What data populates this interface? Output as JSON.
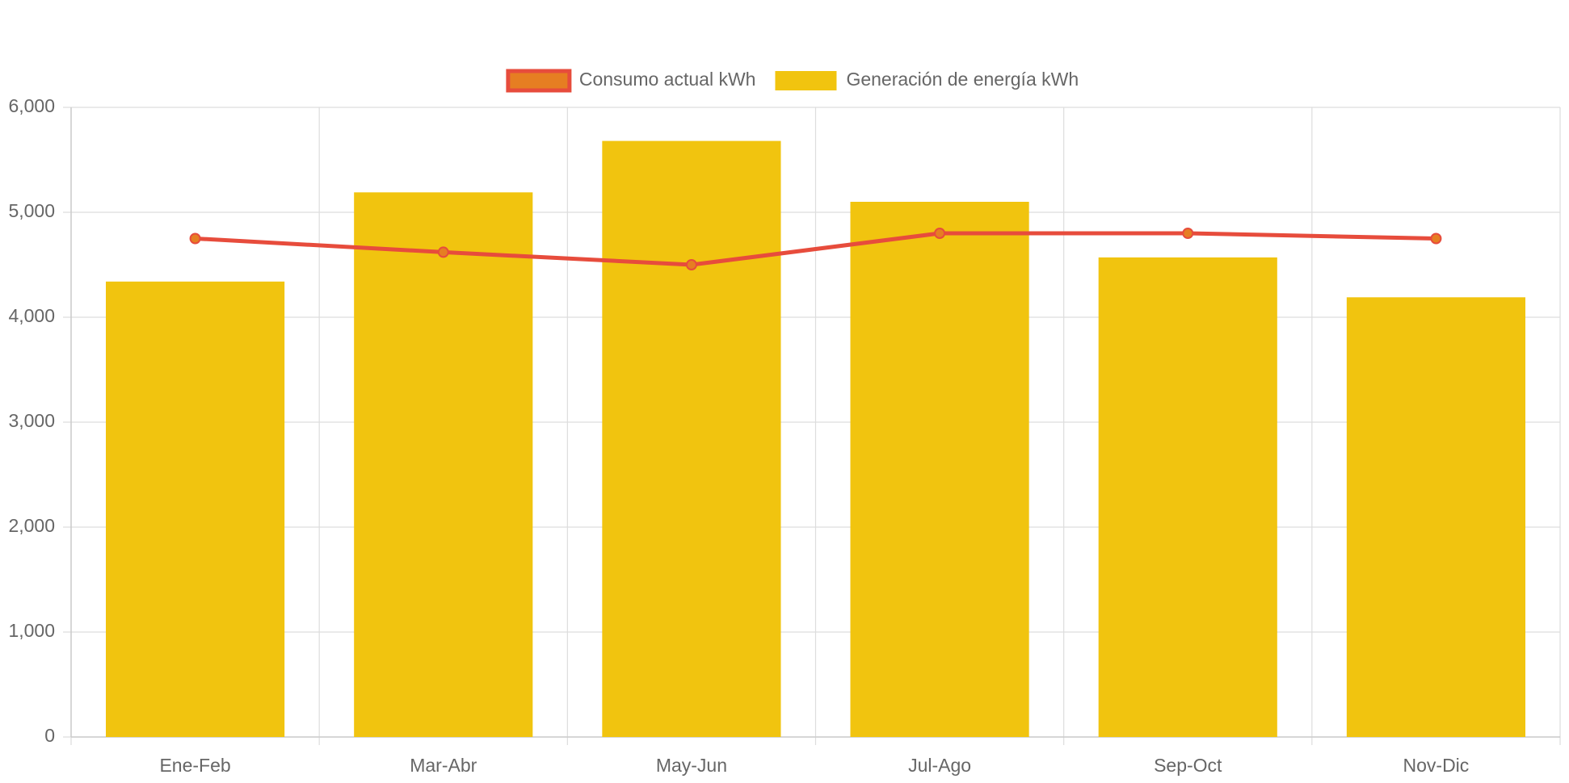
{
  "chart_data": {
    "type": "bar",
    "categories": [
      "Ene-Feb",
      "Mar-Abr",
      "May-Jun",
      "Jul-Ago",
      "Sep-Oct",
      "Nov-Dic"
    ],
    "series": [
      {
        "name": "Consumo actual kWh",
        "type": "line",
        "color": "#e74c3c",
        "point_color": "#e67e22",
        "values": [
          4750,
          4620,
          4500,
          4800,
          4800,
          4750
        ]
      },
      {
        "name": "Generación de energía kWh",
        "type": "bar",
        "color": "#f1c40f",
        "values": [
          4340,
          5190,
          5680,
          5100,
          4570,
          4190
        ]
      }
    ],
    "ylim": [
      0,
      6000
    ],
    "yticks": [
      0,
      {
        "value": 1000,
        "label": "1,000"
      },
      {
        "value": 2000,
        "label": "2,000"
      },
      {
        "value": 3000,
        "label": "3,000"
      },
      {
        "value": 4000,
        "label": "4,000"
      },
      {
        "value": 5000,
        "label": "5,000"
      },
      {
        "value": 6000,
        "label": "6,000"
      }
    ],
    "grid": true,
    "legend": "top"
  }
}
